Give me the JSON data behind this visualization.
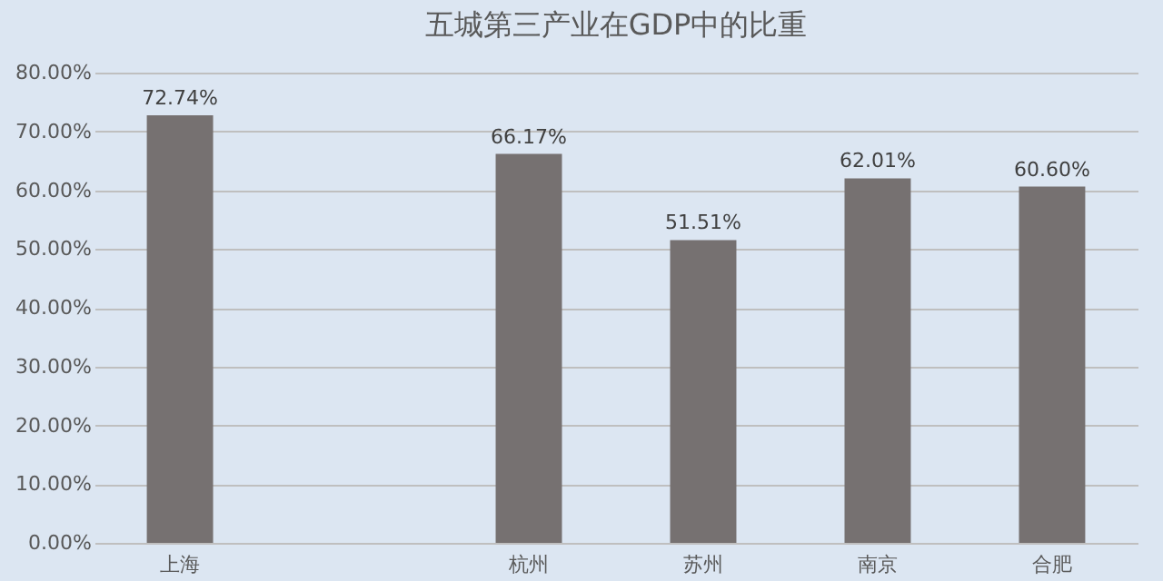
{
  "chart_data": {
    "type": "bar",
    "title": "五城第三产业在GDP中的比重",
    "categories": [
      "上海",
      null,
      "杭州",
      "苏州",
      "南京",
      "合肥"
    ],
    "values": [
      72.74,
      null,
      66.17,
      51.51,
      62.01,
      60.6
    ],
    "value_labels": [
      "72.74%",
      null,
      "66.17%",
      "51.51%",
      "62.01%",
      "60.60%"
    ],
    "color": "#767171",
    "ylim": [
      0,
      80
    ],
    "yticks": [
      {
        "value": 0,
        "label": "0.00%"
      },
      {
        "value": 10,
        "label": "10.00%"
      },
      {
        "value": 20,
        "label": "20.00%"
      },
      {
        "value": 30,
        "label": "30.00%"
      },
      {
        "value": 40,
        "label": "40.00%"
      },
      {
        "value": 50,
        "label": "50.00%"
      },
      {
        "value": 60,
        "label": "60.00%"
      },
      {
        "value": 70,
        "label": "70.00%"
      },
      {
        "value": 80,
        "label": "80.00%"
      }
    ],
    "grid": "y"
  }
}
